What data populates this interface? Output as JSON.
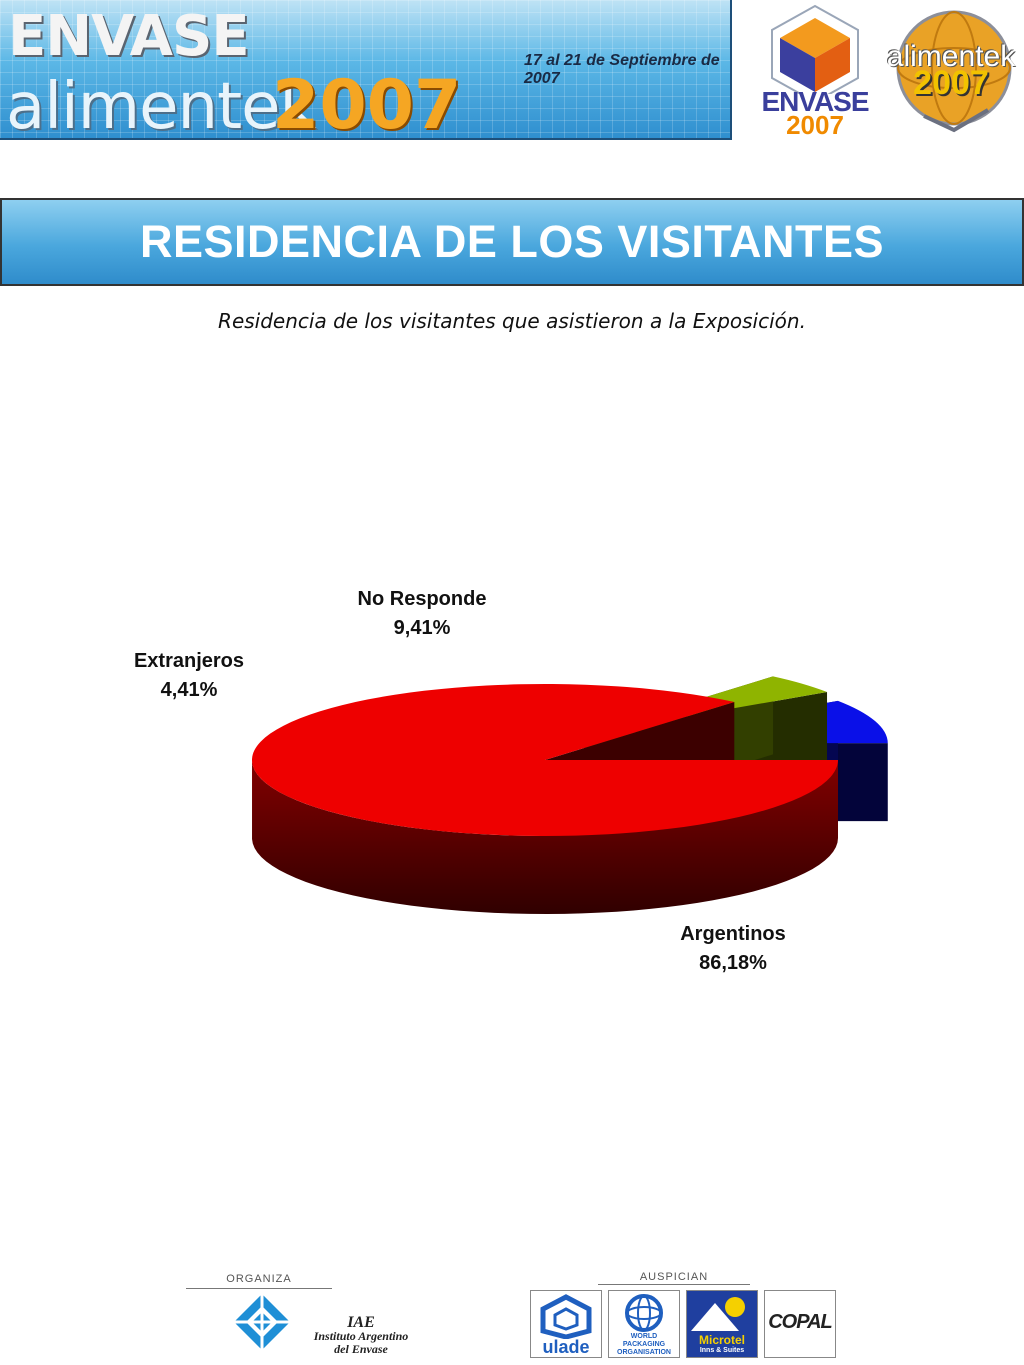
{
  "header": {
    "banner_word1": "ENVASE",
    "banner_word2": "alimentek",
    "banner_year": "2007",
    "banner_dates": "17 al 21 de Septiembre de 2007",
    "logo_envase_word": "ENVASE",
    "logo_envase_year": "2007",
    "logo_alimentek_word": "alimentek",
    "logo_alimentek_year": "2007"
  },
  "title": "RESIDENCIA DE LOS VISITANTES",
  "subtitle": "Residencia de los visitantes que asistieron a la Exposición.",
  "chart_data": {
    "type": "pie",
    "title": "",
    "slices": [
      {
        "label": "No Responde",
        "value": 9.41,
        "value_label": "9,41%",
        "color": "#0a10e8"
      },
      {
        "label": "Extranjeros",
        "value": 4.41,
        "value_label": "4,41%",
        "color": "#8fb400"
      },
      {
        "label": "Argentinos",
        "value": 86.18,
        "value_label": "86,18%",
        "color": "#ee0000"
      }
    ],
    "start_angle_deg": 0,
    "direction": "counterclockwise",
    "exploded": true,
    "three_d": true
  },
  "footer": {
    "organiza_label": "ORGANIZA",
    "organizer_short": "IAE",
    "organizer_name_line1": "Instituto Argentino",
    "organizer_name_line2": "del Envase",
    "auspician_label": "AUSPICIAN",
    "sponsors": [
      {
        "name": "ulade"
      },
      {
        "name_line1": "WORLD",
        "name_line2": "PACKAGING",
        "name_line3": "ORGANISATION"
      },
      {
        "name_line1": "Microtel",
        "name_line2": "Inns & Suites"
      },
      {
        "name": "COPAL"
      }
    ]
  }
}
